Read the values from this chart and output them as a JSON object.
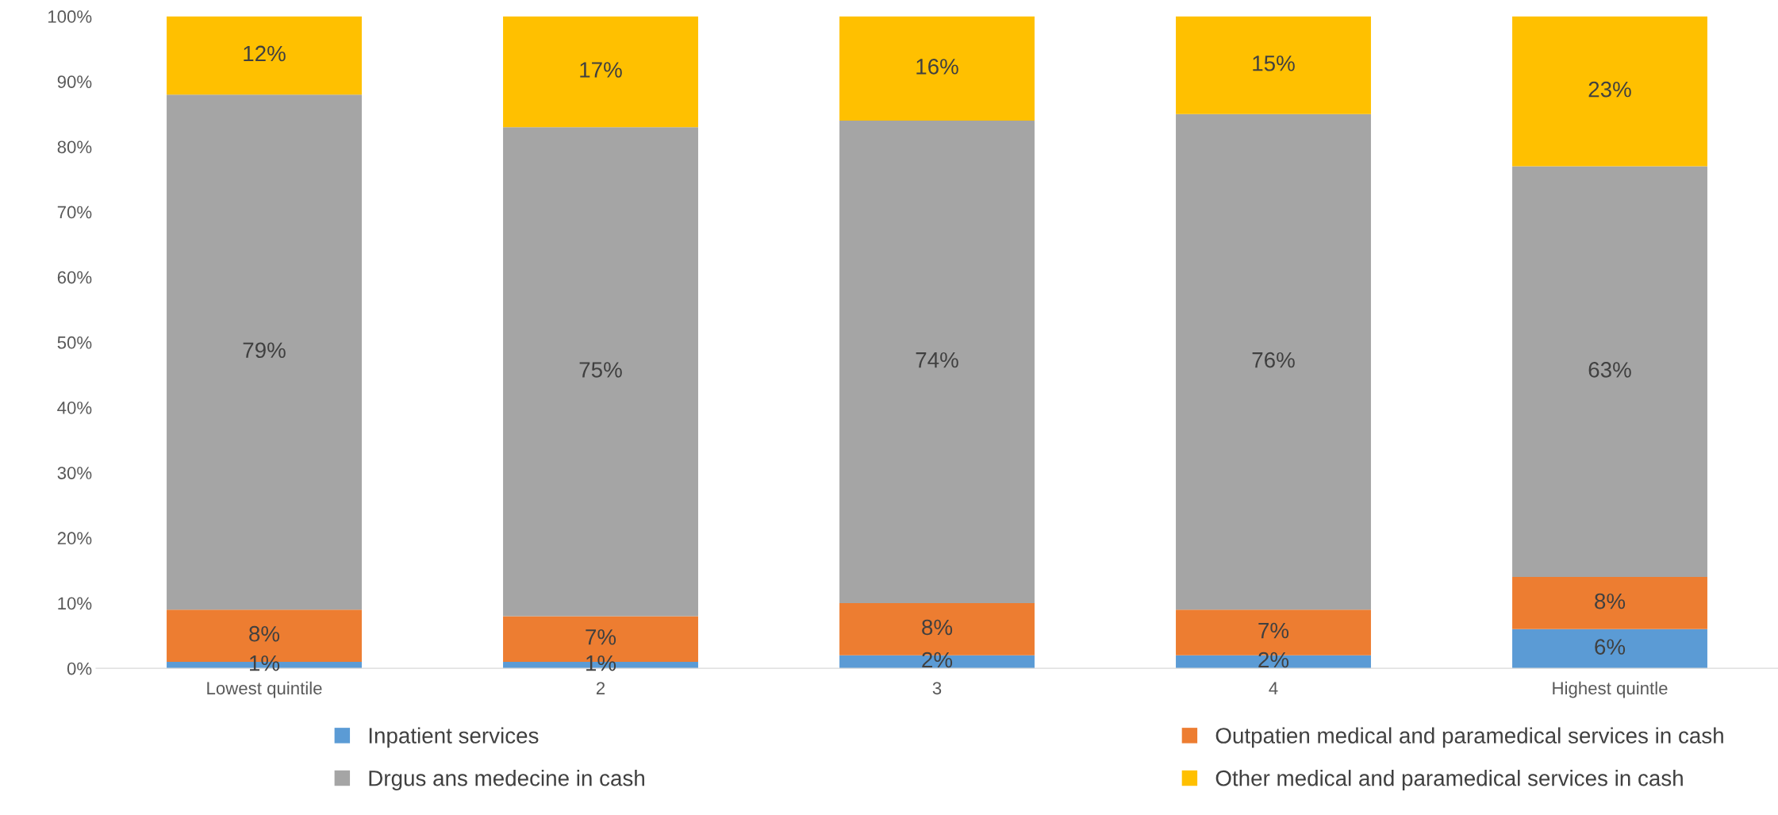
{
  "chart_data": {
    "type": "bar",
    "stacked": true,
    "categories": [
      "Lowest quintile",
      "2",
      "3",
      "4",
      "Highest quintle"
    ],
    "series": [
      {
        "name": "Inpatient services",
        "color": "#5b9bd5",
        "values": [
          1,
          1,
          2,
          2,
          6
        ],
        "value_labels": [
          "1%",
          "1%",
          "2%",
          "2%",
          "6%"
        ]
      },
      {
        "name": "Outpatien medical and paramedical services in cash",
        "color": "#ed7d31",
        "values": [
          8,
          7,
          8,
          7,
          8
        ],
        "value_labels": [
          "8%",
          "7%",
          "8%",
          "7%",
          "8%"
        ]
      },
      {
        "name": "Drgus ans medecine in cash",
        "color": "#a5a5a5",
        "values": [
          79,
          75,
          74,
          76,
          63
        ],
        "value_labels": [
          "79%",
          "75%",
          "74%",
          "76%",
          "63%"
        ]
      },
      {
        "name": "Other medical and paramedical services in cash",
        "color": "#ffc000",
        "values": [
          12,
          17,
          16,
          15,
          23
        ],
        "value_labels": [
          "12%",
          "17%",
          "16%",
          "15%",
          "23%"
        ]
      }
    ],
    "ylim": [
      0,
      100
    ],
    "yticks": [
      {
        "value": 0,
        "label": "0%"
      },
      {
        "value": 10,
        "label": "10%"
      },
      {
        "value": 20,
        "label": "20%"
      },
      {
        "value": 30,
        "label": "30%"
      },
      {
        "value": 40,
        "label": "40%"
      },
      {
        "value": 50,
        "label": "50%"
      },
      {
        "value": 60,
        "label": "60%"
      },
      {
        "value": 70,
        "label": "70%"
      },
      {
        "value": 80,
        "label": "80%"
      },
      {
        "value": 90,
        "label": "90%"
      },
      {
        "value": 100,
        "label": "100%"
      }
    ],
    "grid": false,
    "legend": "bottom"
  }
}
